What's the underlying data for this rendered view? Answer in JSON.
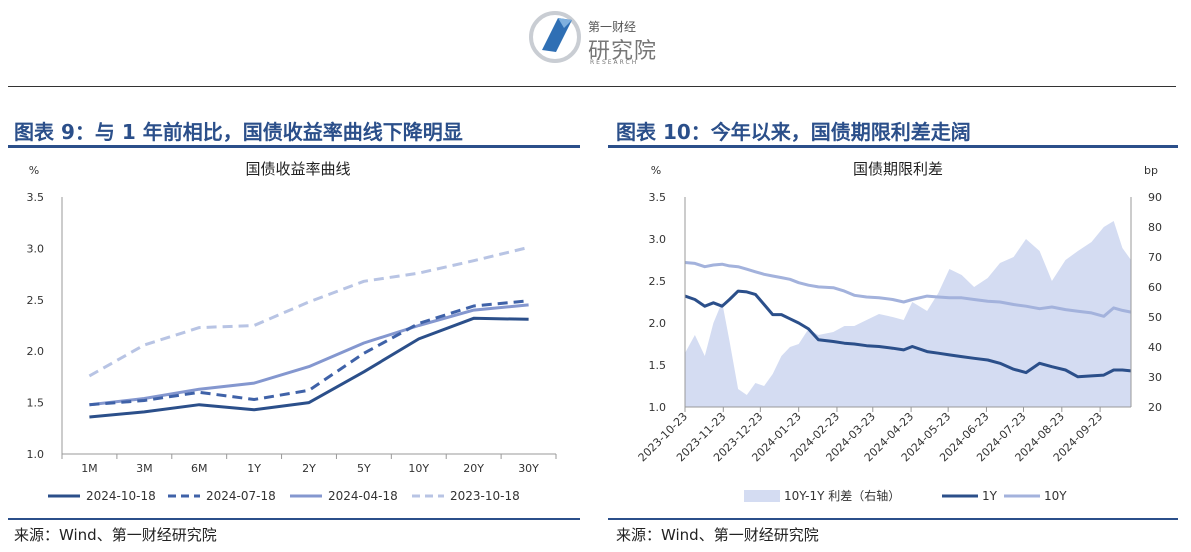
{
  "header": {
    "brand_small": "第一财经",
    "brand_big": "研究院",
    "brand_en": "RESEARCH"
  },
  "left_panel": {
    "figure_title": "图表 9：与 1 年前相比，国债收益率曲线下降明显",
    "source": "来源：Wind、第一财经研究院"
  },
  "right_panel": {
    "figure_title": "图表 10：今年以来，国债期限利差走阔",
    "source": "来源：Wind、第一财经研究院"
  },
  "colors": {
    "dark_blue": "#2b4f8a",
    "mid_blue": "#6f86c2",
    "light_blue": "#a9b8dc",
    "area_fill": "#d4dcf2"
  },
  "chart_data": [
    {
      "type": "line",
      "title": "国债收益率曲线",
      "ylabel": "%",
      "ylim": [
        1.0,
        3.5
      ],
      "yticks": [
        "1.0",
        "1.5",
        "2.0",
        "2.5",
        "3.0",
        "3.5"
      ],
      "categories": [
        "1M",
        "3M",
        "6M",
        "1Y",
        "2Y",
        "5Y",
        "10Y",
        "20Y",
        "30Y"
      ],
      "legend_position": "bottom",
      "series": [
        {
          "name": "2024-10-18",
          "style": "solid",
          "color": "#2b4f8a",
          "values": [
            1.36,
            1.41,
            1.48,
            1.43,
            1.5,
            1.8,
            2.12,
            2.32,
            2.31
          ]
        },
        {
          "name": "2024-07-18",
          "style": "dashed",
          "color": "#3f62a8",
          "values": [
            1.48,
            1.52,
            1.6,
            1.53,
            1.62,
            1.98,
            2.27,
            2.44,
            2.49
          ]
        },
        {
          "name": "2024-04-18",
          "style": "solid",
          "color": "#8497cf",
          "values": [
            1.48,
            1.54,
            1.63,
            1.69,
            1.85,
            2.08,
            2.25,
            2.4,
            2.45
          ]
        },
        {
          "name": "2023-10-18",
          "style": "dashed",
          "color": "#b8c4e4",
          "values": [
            1.76,
            2.06,
            2.23,
            2.25,
            2.48,
            2.68,
            2.76,
            2.88,
            3.01
          ]
        }
      ]
    },
    {
      "type": "line",
      "title": "国债期限利差",
      "ylabel": "%",
      "ylabel_right": "bp",
      "ylim": [
        1.0,
        3.5
      ],
      "ylim_right": [
        20,
        90
      ],
      "yticks": [
        "1.0",
        "1.5",
        "2.0",
        "2.5",
        "3.0",
        "3.5"
      ],
      "yticks_right": [
        "20",
        "30",
        "40",
        "50",
        "60",
        "70",
        "80",
        "90"
      ],
      "x_ticks": [
        "2023-10-23",
        "2023-11-23",
        "2023-12-23",
        "2024-01-23",
        "2024-02-23",
        "2024-03-23",
        "2024-04-23",
        "2024-05-23",
        "2024-06-23",
        "2024-07-23",
        "2024-08-23",
        "2024-09-23"
      ],
      "x_range": [
        "2023-10-23",
        "2024-10-18"
      ],
      "legend_position": "bottom",
      "series": [
        {
          "name": "10Y-1Y 利差（右轴）",
          "kind": "area",
          "axis": "right",
          "color": "#d4dcf2",
          "points": [
            [
              "2023-10-23",
              38
            ],
            [
              "2023-10-31",
              44
            ],
            [
              "2023-11-08",
              37
            ],
            [
              "2023-11-15",
              48
            ],
            [
              "2023-11-22",
              55
            ],
            [
              "2023-11-28",
              42
            ],
            [
              "2023-12-05",
              26
            ],
            [
              "2023-12-12",
              24
            ],
            [
              "2023-12-19",
              28
            ],
            [
              "2023-12-26",
              27
            ],
            [
              "2024-01-02",
              31
            ],
            [
              "2024-01-09",
              37
            ],
            [
              "2024-01-16",
              40
            ],
            [
              "2024-01-23",
              41
            ],
            [
              "2024-01-31",
              46
            ],
            [
              "2024-02-08",
              44
            ],
            [
              "2024-02-20",
              45
            ],
            [
              "2024-02-29",
              47
            ],
            [
              "2024-03-08",
              47
            ],
            [
              "2024-03-18",
              49
            ],
            [
              "2024-03-28",
              51
            ],
            [
              "2024-04-08",
              50
            ],
            [
              "2024-04-17",
              49
            ],
            [
              "2024-04-24",
              55
            ],
            [
              "2024-05-06",
              52
            ],
            [
              "2024-05-15",
              58
            ],
            [
              "2024-05-24",
              66
            ],
            [
              "2024-06-03",
              64
            ],
            [
              "2024-06-13",
              60
            ],
            [
              "2024-06-24",
              63
            ],
            [
              "2024-07-04",
              68
            ],
            [
              "2024-07-15",
              70
            ],
            [
              "2024-07-25",
              76
            ],
            [
              "2024-08-05",
              72
            ],
            [
              "2024-08-15",
              62
            ],
            [
              "2024-08-26",
              69
            ],
            [
              "2024-09-05",
              72
            ],
            [
              "2024-09-16",
              75
            ],
            [
              "2024-09-26",
              80
            ],
            [
              "2024-10-04",
              82
            ],
            [
              "2024-10-11",
              73
            ],
            [
              "2024-10-18",
              69
            ]
          ]
        },
        {
          "name": "1Y",
          "kind": "line",
          "axis": "left",
          "color": "#2b4f8a",
          "points": [
            [
              "2023-10-23",
              2.32
            ],
            [
              "2023-10-31",
              2.28
            ],
            [
              "2023-11-08",
              2.2
            ],
            [
              "2023-11-15",
              2.24
            ],
            [
              "2023-11-22",
              2.2
            ],
            [
              "2023-11-28",
              2.28
            ],
            [
              "2023-12-05",
              2.38
            ],
            [
              "2023-12-12",
              2.37
            ],
            [
              "2023-12-19",
              2.34
            ],
            [
              "2023-12-26",
              2.22
            ],
            [
              "2024-01-02",
              2.1
            ],
            [
              "2024-01-09",
              2.1
            ],
            [
              "2024-01-16",
              2.05
            ],
            [
              "2024-01-23",
              2.0
            ],
            [
              "2024-01-31",
              1.93
            ],
            [
              "2024-02-08",
              1.8
            ],
            [
              "2024-02-20",
              1.78
            ],
            [
              "2024-02-29",
              1.76
            ],
            [
              "2024-03-08",
              1.75
            ],
            [
              "2024-03-18",
              1.73
            ],
            [
              "2024-03-28",
              1.72
            ],
            [
              "2024-04-08",
              1.7
            ],
            [
              "2024-04-17",
              1.68
            ],
            [
              "2024-04-24",
              1.72
            ],
            [
              "2024-05-06",
              1.66
            ],
            [
              "2024-05-15",
              1.64
            ],
            [
              "2024-05-24",
              1.62
            ],
            [
              "2024-06-03",
              1.6
            ],
            [
              "2024-06-13",
              1.58
            ],
            [
              "2024-06-24",
              1.56
            ],
            [
              "2024-07-04",
              1.52
            ],
            [
              "2024-07-15",
              1.45
            ],
            [
              "2024-07-25",
              1.41
            ],
            [
              "2024-08-05",
              1.52
            ],
            [
              "2024-08-15",
              1.48
            ],
            [
              "2024-08-26",
              1.44
            ],
            [
              "2024-09-05",
              1.36
            ],
            [
              "2024-09-16",
              1.37
            ],
            [
              "2024-09-26",
              1.38
            ],
            [
              "2024-10-04",
              1.44
            ],
            [
              "2024-10-11",
              1.44
            ],
            [
              "2024-10-18",
              1.43
            ]
          ]
        },
        {
          "name": "10Y",
          "kind": "line",
          "axis": "left",
          "color": "#a3b2dc",
          "points": [
            [
              "2023-10-23",
              2.72
            ],
            [
              "2023-10-31",
              2.71
            ],
            [
              "2023-11-08",
              2.67
            ],
            [
              "2023-11-15",
              2.69
            ],
            [
              "2023-11-22",
              2.7
            ],
            [
              "2023-11-28",
              2.68
            ],
            [
              "2023-12-05",
              2.67
            ],
            [
              "2023-12-12",
              2.64
            ],
            [
              "2023-12-19",
              2.61
            ],
            [
              "2023-12-26",
              2.58
            ],
            [
              "2024-01-02",
              2.56
            ],
            [
              "2024-01-09",
              2.54
            ],
            [
              "2024-01-16",
              2.52
            ],
            [
              "2024-01-23",
              2.48
            ],
            [
              "2024-01-31",
              2.45
            ],
            [
              "2024-02-08",
              2.43
            ],
            [
              "2024-02-20",
              2.42
            ],
            [
              "2024-02-29",
              2.38
            ],
            [
              "2024-03-08",
              2.33
            ],
            [
              "2024-03-18",
              2.31
            ],
            [
              "2024-03-28",
              2.3
            ],
            [
              "2024-04-08",
              2.28
            ],
            [
              "2024-04-17",
              2.25
            ],
            [
              "2024-04-24",
              2.28
            ],
            [
              "2024-05-06",
              2.32
            ],
            [
              "2024-05-15",
              2.31
            ],
            [
              "2024-05-24",
              2.3
            ],
            [
              "2024-06-03",
              2.3
            ],
            [
              "2024-06-13",
              2.28
            ],
            [
              "2024-06-24",
              2.26
            ],
            [
              "2024-07-04",
              2.25
            ],
            [
              "2024-07-15",
              2.22
            ],
            [
              "2024-07-25",
              2.2
            ],
            [
              "2024-08-05",
              2.17
            ],
            [
              "2024-08-15",
              2.19
            ],
            [
              "2024-08-26",
              2.16
            ],
            [
              "2024-09-05",
              2.14
            ],
            [
              "2024-09-16",
              2.12
            ],
            [
              "2024-09-26",
              2.08
            ],
            [
              "2024-10-04",
              2.18
            ],
            [
              "2024-10-11",
              2.15
            ],
            [
              "2024-10-18",
              2.13
            ]
          ]
        }
      ]
    }
  ]
}
